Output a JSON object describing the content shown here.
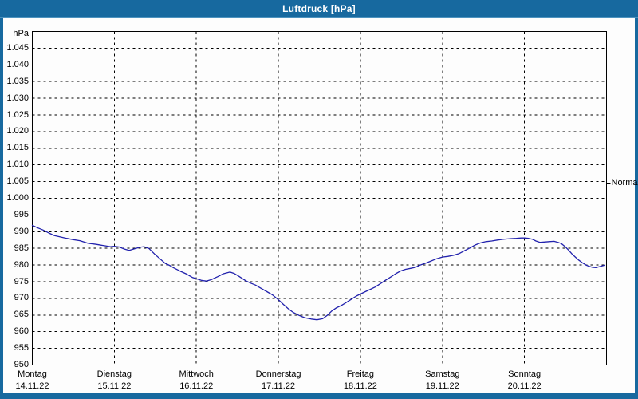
{
  "window": {
    "title": "Luftdruck [hPa]"
  },
  "colors": {
    "frame_blue": "#17699f",
    "titlebar_text": "#ffffff",
    "plot_background": "#fdfdfd",
    "grid": "#000000",
    "line": "#2222ad",
    "label_text": "#000000"
  },
  "chart_data": {
    "type": "line",
    "title": "Luftdruck [hPa]",
    "unit_label": "hPa",
    "ylim": [
      950,
      1050
    ],
    "x_days_total": 7,
    "grid": "dashed, horizontal every 5 hPa, vertical at each day boundary",
    "legend_position": "none",
    "y_ticks": [
      {
        "label": "1.045",
        "value": 1045
      },
      {
        "label": "1.040",
        "value": 1040
      },
      {
        "label": "1.035",
        "value": 1035
      },
      {
        "label": "1.030",
        "value": 1030
      },
      {
        "label": "1.025",
        "value": 1025
      },
      {
        "label": "1.020",
        "value": 1020
      },
      {
        "label": "1.015",
        "value": 1015
      },
      {
        "label": "1.010",
        "value": 1010
      },
      {
        "label": "1.005",
        "value": 1005
      },
      {
        "label": "1.000",
        "value": 1000
      },
      {
        "label": "995",
        "value": 995
      },
      {
        "label": "990",
        "value": 990
      },
      {
        "label": "985",
        "value": 985
      },
      {
        "label": "980",
        "value": 980
      },
      {
        "label": "975",
        "value": 975
      },
      {
        "label": "970",
        "value": 970
      },
      {
        "label": "965",
        "value": 965
      },
      {
        "label": "960",
        "value": 960
      },
      {
        "label": "955",
        "value": 955
      },
      {
        "label": "950",
        "value": 950
      }
    ],
    "days": [
      {
        "name": "Montag",
        "date": "14.11.22"
      },
      {
        "name": "Dienstag",
        "date": "15.11.22"
      },
      {
        "name": "Mittwoch",
        "date": "16.11.22"
      },
      {
        "name": "Donnerstag",
        "date": "17.11.22"
      },
      {
        "name": "Freitag",
        "date": "18.11.22"
      },
      {
        "name": "Samstag",
        "date": "19.11.22"
      },
      {
        "name": "Sonntag",
        "date": "20.11.22"
      }
    ],
    "annotations": [
      {
        "label": "Normal",
        "value": 1004.5,
        "side": "right"
      }
    ],
    "series": [
      {
        "name": "Luftdruck",
        "color": "#2222ad",
        "points_t_days_vs_hPa": [
          [
            0.0,
            991.9
          ],
          [
            0.06,
            991.2
          ],
          [
            0.13,
            990.5
          ],
          [
            0.21,
            989.5
          ],
          [
            0.27,
            988.8
          ],
          [
            0.33,
            988.5
          ],
          [
            0.42,
            988.0
          ],
          [
            0.5,
            987.6
          ],
          [
            0.58,
            987.3
          ],
          [
            0.68,
            986.5
          ],
          [
            0.78,
            986.2
          ],
          [
            0.88,
            985.8
          ],
          [
            0.95,
            985.5
          ],
          [
            1.0,
            985.6
          ],
          [
            1.06,
            985.4
          ],
          [
            1.12,
            984.8
          ],
          [
            1.18,
            984.4
          ],
          [
            1.25,
            984.9
          ],
          [
            1.31,
            985.3
          ],
          [
            1.36,
            985.5
          ],
          [
            1.42,
            985.0
          ],
          [
            1.49,
            983.3
          ],
          [
            1.55,
            982.0
          ],
          [
            1.62,
            980.5
          ],
          [
            1.68,
            979.8
          ],
          [
            1.72,
            979.2
          ],
          [
            1.8,
            978.2
          ],
          [
            1.88,
            977.3
          ],
          [
            1.95,
            976.3
          ],
          [
            2.0,
            975.9
          ],
          [
            2.06,
            975.4
          ],
          [
            2.12,
            975.2
          ],
          [
            2.18,
            975.6
          ],
          [
            2.26,
            976.5
          ],
          [
            2.33,
            977.4
          ],
          [
            2.41,
            977.9
          ],
          [
            2.46,
            977.5
          ],
          [
            2.52,
            976.6
          ],
          [
            2.6,
            975.3
          ],
          [
            2.66,
            974.6
          ],
          [
            2.72,
            974.0
          ],
          [
            2.79,
            973.0
          ],
          [
            2.86,
            972.0
          ],
          [
            2.93,
            971.0
          ],
          [
            3.0,
            969.6
          ],
          [
            3.06,
            968.2
          ],
          [
            3.12,
            966.9
          ],
          [
            3.18,
            965.8
          ],
          [
            3.25,
            964.9
          ],
          [
            3.32,
            964.2
          ],
          [
            3.4,
            963.8
          ],
          [
            3.47,
            963.6
          ],
          [
            3.54,
            963.9
          ],
          [
            3.6,
            965.0
          ],
          [
            3.65,
            966.2
          ],
          [
            3.71,
            967.2
          ],
          [
            3.77,
            967.9
          ],
          [
            3.83,
            968.8
          ],
          [
            3.9,
            969.9
          ],
          [
            3.95,
            970.7
          ],
          [
            4.0,
            971.3
          ],
          [
            4.06,
            972.0
          ],
          [
            4.12,
            972.7
          ],
          [
            4.18,
            973.4
          ],
          [
            4.25,
            974.5
          ],
          [
            4.31,
            975.5
          ],
          [
            4.37,
            976.4
          ],
          [
            4.43,
            977.4
          ],
          [
            4.49,
            978.2
          ],
          [
            4.55,
            978.7
          ],
          [
            4.61,
            979.0
          ],
          [
            4.67,
            979.3
          ],
          [
            4.73,
            980.0
          ],
          [
            4.8,
            980.6
          ],
          [
            4.86,
            981.2
          ],
          [
            4.93,
            981.9
          ],
          [
            5.0,
            982.4
          ],
          [
            5.07,
            982.6
          ],
          [
            5.13,
            982.9
          ],
          [
            5.2,
            983.4
          ],
          [
            5.27,
            984.3
          ],
          [
            5.34,
            985.2
          ],
          [
            5.4,
            986.0
          ],
          [
            5.46,
            986.6
          ],
          [
            5.53,
            987.0
          ],
          [
            5.6,
            987.2
          ],
          [
            5.67,
            987.5
          ],
          [
            5.74,
            987.7
          ],
          [
            5.82,
            987.9
          ],
          [
            5.9,
            988.0
          ],
          [
            5.96,
            988.1
          ],
          [
            6.0,
            988.1
          ],
          [
            6.05,
            988.0
          ],
          [
            6.1,
            987.7
          ],
          [
            6.14,
            987.2
          ],
          [
            6.19,
            986.8
          ],
          [
            6.24,
            986.9
          ],
          [
            6.3,
            987.0
          ],
          [
            6.36,
            987.1
          ],
          [
            6.41,
            986.8
          ],
          [
            6.45,
            986.4
          ],
          [
            6.5,
            985.4
          ],
          [
            6.54,
            984.4
          ],
          [
            6.58,
            983.3
          ],
          [
            6.62,
            982.4
          ],
          [
            6.66,
            981.5
          ],
          [
            6.71,
            980.6
          ],
          [
            6.75,
            980.0
          ],
          [
            6.79,
            979.6
          ],
          [
            6.83,
            979.3
          ],
          [
            6.87,
            979.2
          ],
          [
            6.91,
            979.5
          ],
          [
            6.94,
            979.7
          ],
          [
            6.97,
            979.9
          ]
        ]
      }
    ]
  }
}
